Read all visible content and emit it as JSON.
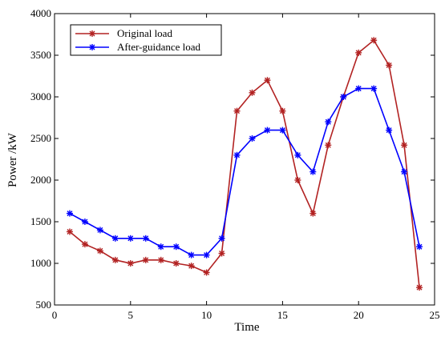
{
  "chart_data": {
    "type": "line",
    "xlabel": "Time",
    "ylabel": "Power /kW",
    "xlim": [
      0,
      25
    ],
    "ylim": [
      500,
      4000
    ],
    "xticks": [
      0,
      5,
      10,
      15,
      20,
      25
    ],
    "yticks": [
      500,
      1000,
      1500,
      2000,
      2500,
      3000,
      3500,
      4000
    ],
    "grid": false,
    "legend_position": "top-left",
    "x": [
      1,
      2,
      3,
      4,
      5,
      6,
      7,
      8,
      9,
      10,
      11,
      12,
      13,
      14,
      15,
      16,
      17,
      18,
      19,
      20,
      21,
      22,
      23,
      24
    ],
    "series": [
      {
        "name": "Original load",
        "color": "#b22222",
        "marker": "star",
        "values": [
          1380,
          1230,
          1150,
          1040,
          1000,
          1040,
          1040,
          1000,
          970,
          890,
          1120,
          2830,
          3050,
          3200,
          2830,
          2000,
          1600,
          2420,
          3000,
          3530,
          3680,
          3380,
          2420,
          710
        ]
      },
      {
        "name": "After-guidance load",
        "color": "#0000ff",
        "marker": "star",
        "values": [
          1600,
          1500,
          1400,
          1300,
          1300,
          1300,
          1200,
          1200,
          1100,
          1100,
          1300,
          2300,
          2500,
          2600,
          2600,
          2300,
          2100,
          2700,
          3000,
          3100,
          3100,
          2600,
          2100,
          1200
        ]
      }
    ]
  }
}
